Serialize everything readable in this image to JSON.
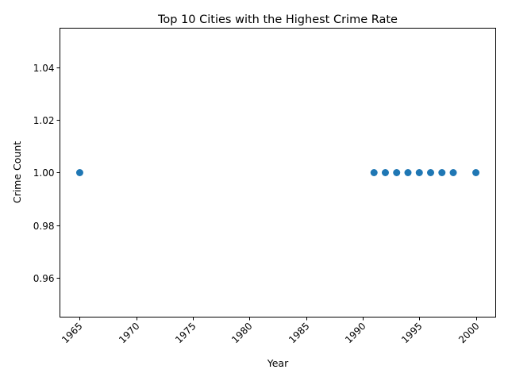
{
  "chart_data": {
    "type": "scatter",
    "title": "Top 10 Cities with the Highest Crime Rate",
    "xlabel": "Year",
    "ylabel": "Crime Count",
    "x": [
      1965,
      1991,
      1992,
      1993,
      1994,
      1995,
      1996,
      1997,
      1998,
      2000
    ],
    "y": [
      1,
      1,
      1,
      1,
      1,
      1,
      1,
      1,
      1,
      1
    ],
    "xlim": [
      1963.25,
      2001.75
    ],
    "ylim": [
      0.945,
      1.055
    ],
    "xticks": [
      1965,
      1970,
      1975,
      1980,
      1985,
      1990,
      1995,
      2000
    ],
    "xtick_labels": [
      "1965",
      "1970",
      "1975",
      "1980",
      "1985",
      "1990",
      "1995",
      "2000"
    ],
    "xtick_rotation_deg": 45,
    "yticks": [
      0.96,
      0.98,
      1.0,
      1.02,
      1.04
    ],
    "ytick_labels": [
      "0.96",
      "0.98",
      "1.00",
      "1.02",
      "1.04"
    ],
    "grid": false,
    "legend": "none",
    "marker_color": "#1f77b4"
  }
}
